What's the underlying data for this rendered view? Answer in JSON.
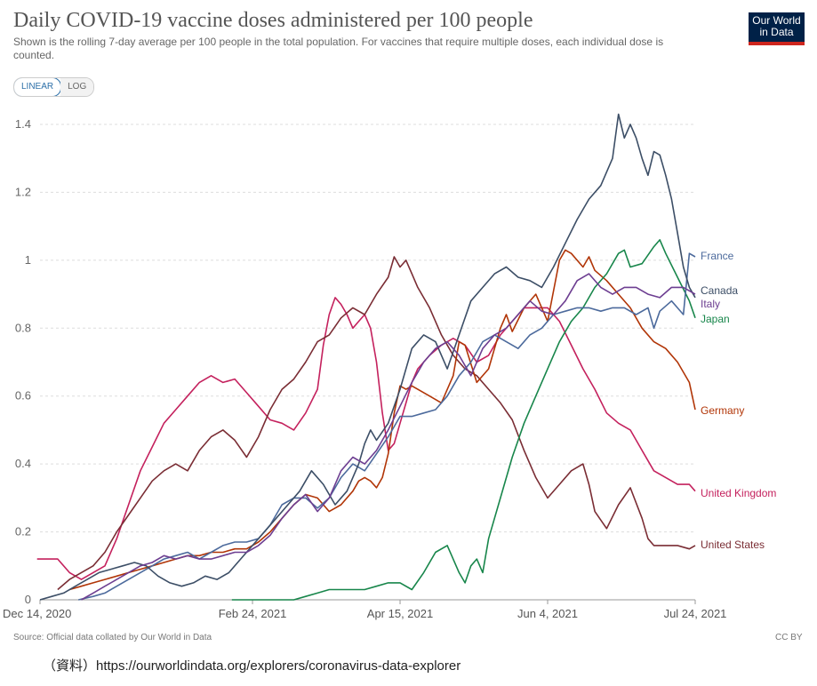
{
  "header": {
    "title": "Daily COVID-19 vaccine doses administered per 100 people",
    "subtitle": "Shown is the rolling 7-day average per 100 people in the total population. For vaccines that require multiple doses, each individual dose is counted."
  },
  "logo": {
    "line1": "Our World",
    "line2": "in Data"
  },
  "controls": {
    "linear_label": "LINEAR",
    "log_label": "LOG",
    "selected": "linear"
  },
  "footer": {
    "source": "Source: Official data collated by Our World in Data",
    "license": "CC BY",
    "note": "（資料）https://ourworldindata.org/explorers/coronavirus-data-explorer"
  },
  "colors": {
    "France": "#4c6a9c",
    "Canada": "#3c4e66",
    "Italy": "#6d3e91",
    "Japan": "#18864b",
    "Germany": "#b13507",
    "United Kingdom": "#c4215d",
    "United States": "#7a2d34"
  },
  "chart_data": {
    "type": "line",
    "title": "Daily COVID-19 vaccine doses administered per 100 people",
    "xlabel": "",
    "ylabel": "",
    "xlim": [
      0,
      222
    ],
    "ylim": [
      0,
      1.45
    ],
    "x_ticks": [
      {
        "x": 0,
        "label": "Dec 14, 2020"
      },
      {
        "x": 72,
        "label": "Feb 24, 2021"
      },
      {
        "x": 122,
        "label": "Apr 15, 2021"
      },
      {
        "x": 172,
        "label": "Jun 4, 2021"
      },
      {
        "x": 222,
        "label": "Jul 24, 2021"
      }
    ],
    "y_ticks": [
      {
        "v": 0,
        "label": "0"
      },
      {
        "v": 0.2,
        "label": "0.2"
      },
      {
        "v": 0.4,
        "label": "0.4"
      },
      {
        "v": 0.6,
        "label": "0.6"
      },
      {
        "v": 0.8,
        "label": "0.8"
      },
      {
        "v": 1.0,
        "label": "1"
      },
      {
        "v": 1.2,
        "label": "1.2"
      },
      {
        "v": 1.4,
        "label": "1.4"
      }
    ],
    "grid": true,
    "legend": "right",
    "series": [
      {
        "name": "United Kingdom",
        "x": [
          -1,
          6,
          10,
          14,
          18,
          22,
          26,
          30,
          34,
          38,
          42,
          46,
          50,
          54,
          58,
          62,
          66,
          70,
          74,
          78,
          82,
          86,
          90,
          94,
          96,
          98,
          100,
          102,
          104,
          106,
          108,
          110,
          112,
          114,
          116,
          118,
          120,
          122,
          124,
          126,
          128,
          132,
          136,
          140,
          144,
          148,
          152,
          156,
          160,
          164,
          168,
          172,
          176,
          180,
          184,
          188,
          192,
          196,
          200,
          204,
          208,
          212,
          216,
          220,
          222
        ],
        "y": [
          0.12,
          0.12,
          0.08,
          0.06,
          0.08,
          0.1,
          0.18,
          0.28,
          0.38,
          0.45,
          0.52,
          0.56,
          0.6,
          0.64,
          0.66,
          0.64,
          0.65,
          0.61,
          0.57,
          0.53,
          0.52,
          0.5,
          0.55,
          0.62,
          0.75,
          0.84,
          0.89,
          0.87,
          0.84,
          0.8,
          0.82,
          0.84,
          0.8,
          0.7,
          0.55,
          0.44,
          0.46,
          0.52,
          0.58,
          0.64,
          0.68,
          0.72,
          0.75,
          0.77,
          0.75,
          0.7,
          0.72,
          0.78,
          0.82,
          0.86,
          0.86,
          0.86,
          0.82,
          0.75,
          0.68,
          0.62,
          0.55,
          0.52,
          0.5,
          0.44,
          0.38,
          0.36,
          0.34,
          0.34,
          0.32
        ]
      },
      {
        "name": "United States",
        "x": [
          6,
          10,
          14,
          18,
          22,
          26,
          30,
          34,
          38,
          42,
          46,
          50,
          54,
          58,
          62,
          66,
          70,
          74,
          78,
          82,
          86,
          90,
          94,
          98,
          102,
          106,
          110,
          114,
          118,
          120,
          122,
          124,
          126,
          128,
          132,
          136,
          140,
          144,
          148,
          152,
          156,
          160,
          164,
          168,
          172,
          176,
          180,
          184,
          186,
          188,
          192,
          196,
          200,
          204,
          206,
          208,
          212,
          216,
          220,
          222
        ],
        "y": [
          0.03,
          0.06,
          0.08,
          0.1,
          0.14,
          0.2,
          0.25,
          0.3,
          0.35,
          0.38,
          0.4,
          0.38,
          0.44,
          0.48,
          0.5,
          0.47,
          0.42,
          0.48,
          0.56,
          0.62,
          0.65,
          0.7,
          0.76,
          0.78,
          0.83,
          0.86,
          0.84,
          0.9,
          0.95,
          1.01,
          0.98,
          1.0,
          0.96,
          0.92,
          0.86,
          0.78,
          0.72,
          0.68,
          0.66,
          0.62,
          0.58,
          0.53,
          0.44,
          0.36,
          0.3,
          0.34,
          0.38,
          0.4,
          0.34,
          0.26,
          0.21,
          0.28,
          0.33,
          0.24,
          0.18,
          0.16,
          0.16,
          0.16,
          0.15,
          0.16
        ]
      },
      {
        "name": "Germany",
        "x": [
          10,
          14,
          18,
          22,
          26,
          30,
          34,
          38,
          42,
          46,
          50,
          54,
          58,
          62,
          66,
          70,
          74,
          78,
          82,
          86,
          90,
          94,
          98,
          102,
          106,
          108,
          110,
          112,
          114,
          116,
          118,
          120,
          122,
          124,
          126,
          128,
          132,
          136,
          140,
          142,
          144,
          148,
          152,
          156,
          158,
          160,
          164,
          168,
          172,
          176,
          178,
          180,
          184,
          186,
          188,
          192,
          196,
          200,
          204,
          208,
          212,
          216,
          220,
          222
        ],
        "y": [
          0.03,
          0.04,
          0.05,
          0.06,
          0.07,
          0.08,
          0.09,
          0.1,
          0.11,
          0.12,
          0.13,
          0.13,
          0.14,
          0.14,
          0.15,
          0.15,
          0.17,
          0.2,
          0.24,
          0.28,
          0.31,
          0.3,
          0.26,
          0.28,
          0.32,
          0.35,
          0.36,
          0.35,
          0.33,
          0.36,
          0.43,
          0.55,
          0.63,
          0.62,
          0.63,
          0.62,
          0.6,
          0.58,
          0.66,
          0.76,
          0.75,
          0.64,
          0.68,
          0.8,
          0.84,
          0.79,
          0.86,
          0.9,
          0.82,
          1.0,
          1.03,
          1.02,
          0.98,
          1.01,
          0.97,
          0.94,
          0.9,
          0.86,
          0.8,
          0.76,
          0.74,
          0.7,
          0.64,
          0.56
        ]
      },
      {
        "name": "Japan",
        "x": [
          65,
          70,
          74,
          78,
          82,
          86,
          90,
          94,
          98,
          102,
          106,
          110,
          114,
          118,
          122,
          126,
          130,
          134,
          138,
          142,
          144,
          146,
          148,
          150,
          152,
          156,
          160,
          164,
          168,
          172,
          176,
          180,
          184,
          188,
          192,
          196,
          198,
          200,
          204,
          208,
          210,
          212,
          216,
          220,
          222
        ],
        "y": [
          0.0,
          0.0,
          0.0,
          0.0,
          0.0,
          0.0,
          0.01,
          0.02,
          0.03,
          0.03,
          0.03,
          0.03,
          0.04,
          0.05,
          0.05,
          0.03,
          0.08,
          0.14,
          0.16,
          0.08,
          0.05,
          0.1,
          0.12,
          0.08,
          0.18,
          0.3,
          0.42,
          0.52,
          0.6,
          0.68,
          0.76,
          0.82,
          0.86,
          0.92,
          0.96,
          1.02,
          1.03,
          0.98,
          0.99,
          1.04,
          1.06,
          1.02,
          0.95,
          0.88,
          0.83
        ]
      },
      {
        "name": "France",
        "x": [
          13,
          18,
          22,
          26,
          30,
          34,
          38,
          42,
          46,
          50,
          54,
          58,
          62,
          66,
          70,
          74,
          78,
          82,
          86,
          90,
          94,
          98,
          102,
          106,
          110,
          114,
          118,
          122,
          126,
          130,
          134,
          138,
          142,
          146,
          150,
          154,
          158,
          162,
          166,
          170,
          174,
          178,
          182,
          186,
          190,
          194,
          198,
          202,
          206,
          208,
          210,
          214,
          218,
          220,
          222
        ],
        "y": [
          0.0,
          0.01,
          0.02,
          0.04,
          0.06,
          0.08,
          0.1,
          0.12,
          0.13,
          0.14,
          0.12,
          0.14,
          0.16,
          0.17,
          0.17,
          0.18,
          0.22,
          0.28,
          0.3,
          0.3,
          0.27,
          0.3,
          0.36,
          0.4,
          0.38,
          0.43,
          0.48,
          0.54,
          0.54,
          0.55,
          0.56,
          0.6,
          0.66,
          0.7,
          0.76,
          0.78,
          0.76,
          0.74,
          0.78,
          0.8,
          0.84,
          0.85,
          0.86,
          0.86,
          0.85,
          0.86,
          0.86,
          0.84,
          0.86,
          0.8,
          0.85,
          0.88,
          0.84,
          1.02,
          1.01
        ]
      },
      {
        "name": "Canada",
        "x": [
          0,
          4,
          8,
          12,
          16,
          20,
          24,
          28,
          32,
          36,
          40,
          44,
          48,
          52,
          56,
          60,
          64,
          68,
          72,
          76,
          80,
          84,
          88,
          92,
          96,
          100,
          104,
          108,
          110,
          112,
          114,
          118,
          122,
          126,
          130,
          134,
          138,
          142,
          146,
          150,
          154,
          158,
          162,
          166,
          170,
          174,
          178,
          182,
          186,
          190,
          194,
          196,
          198,
          200,
          202,
          204,
          206,
          208,
          210,
          212,
          214,
          216,
          218,
          220,
          222
        ],
        "y": [
          0.0,
          0.01,
          0.02,
          0.04,
          0.06,
          0.08,
          0.09,
          0.1,
          0.11,
          0.1,
          0.07,
          0.05,
          0.04,
          0.05,
          0.07,
          0.06,
          0.08,
          0.12,
          0.16,
          0.2,
          0.24,
          0.28,
          0.32,
          0.38,
          0.34,
          0.28,
          0.32,
          0.4,
          0.46,
          0.5,
          0.47,
          0.52,
          0.62,
          0.74,
          0.78,
          0.76,
          0.68,
          0.78,
          0.88,
          0.92,
          0.96,
          0.98,
          0.95,
          0.94,
          0.92,
          0.98,
          1.05,
          1.12,
          1.18,
          1.22,
          1.3,
          1.43,
          1.36,
          1.4,
          1.36,
          1.3,
          1.25,
          1.32,
          1.31,
          1.25,
          1.18,
          1.08,
          0.98,
          0.92,
          0.89
        ]
      },
      {
        "name": "Italy",
        "x": [
          14,
          18,
          22,
          26,
          30,
          34,
          38,
          42,
          46,
          50,
          54,
          58,
          62,
          66,
          70,
          74,
          78,
          82,
          86,
          90,
          94,
          98,
          102,
          106,
          110,
          114,
          118,
          122,
          126,
          130,
          134,
          138,
          142,
          146,
          150,
          154,
          158,
          162,
          166,
          170,
          174,
          178,
          182,
          186,
          190,
          194,
          198,
          202,
          206,
          210,
          214,
          218,
          222
        ],
        "y": [
          0.0,
          0.02,
          0.04,
          0.06,
          0.08,
          0.1,
          0.11,
          0.13,
          0.12,
          0.13,
          0.12,
          0.12,
          0.13,
          0.14,
          0.14,
          0.16,
          0.19,
          0.24,
          0.28,
          0.31,
          0.26,
          0.3,
          0.38,
          0.42,
          0.4,
          0.44,
          0.5,
          0.57,
          0.64,
          0.7,
          0.74,
          0.76,
          0.72,
          0.66,
          0.74,
          0.78,
          0.8,
          0.84,
          0.88,
          0.85,
          0.84,
          0.88,
          0.94,
          0.96,
          0.92,
          0.9,
          0.92,
          0.92,
          0.9,
          0.89,
          0.92,
          0.92,
          0.9
        ]
      }
    ],
    "legend_entries": [
      {
        "name": "France",
        "label": "France"
      },
      {
        "name": "Canada",
        "label": "Canada"
      },
      {
        "name": "Italy",
        "label": "Italy"
      },
      {
        "name": "Japan",
        "label": "Japan"
      },
      {
        "name": "Germany",
        "label": "Germany"
      },
      {
        "name": "United Kingdom",
        "label": "United Kingdom"
      },
      {
        "name": "United States",
        "label": "United States"
      }
    ]
  }
}
